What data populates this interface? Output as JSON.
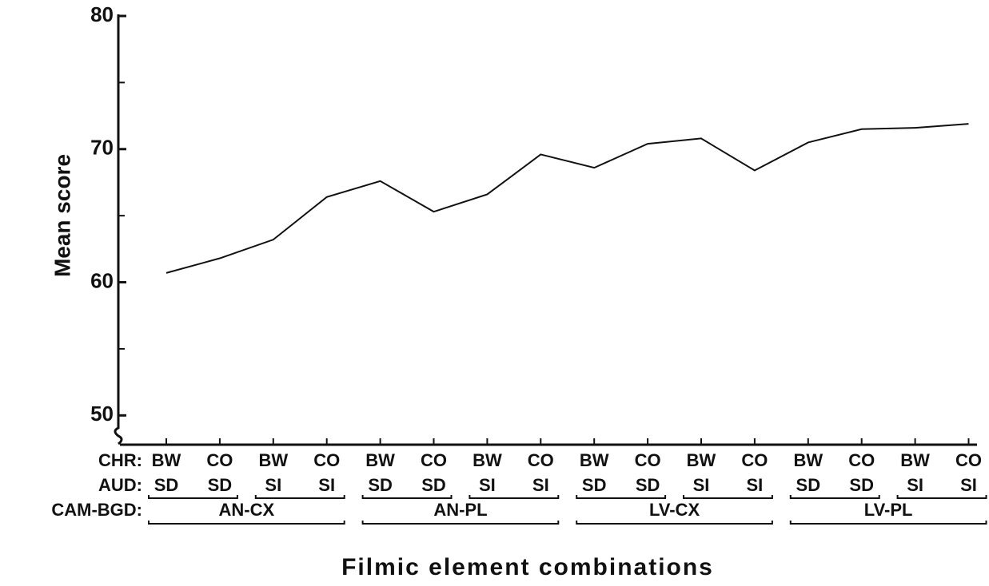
{
  "chart_data": {
    "type": "line",
    "y_label": "Mean score",
    "x_label": "Filmic element combinations",
    "categories": [
      "BW",
      "CO",
      "BW",
      "CO",
      "BW",
      "CO",
      "BW",
      "CO",
      "BW",
      "CO",
      "BW",
      "CO",
      "BW",
      "CO",
      "BW",
      "CO"
    ],
    "category_row_label": "CHR:",
    "aud_row_label": "AUD:",
    "aud_labels": [
      "SD",
      "SD",
      "SI",
      "SI",
      "SD",
      "SD",
      "SI",
      "SI",
      "SD",
      "SD",
      "SI",
      "SI",
      "SD",
      "SD",
      "SI",
      "SI"
    ],
    "group_row_label": "CAM-BGD:",
    "groups": [
      "AN-CX",
      "AN-PL",
      "LV-CX",
      "LV-PL"
    ],
    "values": [
      60.7,
      61.8,
      63.2,
      66.4,
      67.6,
      65.3,
      66.6,
      69.6,
      68.6,
      70.4,
      70.8,
      68.4,
      70.5,
      71.5,
      71.6,
      71.9
    ],
    "color": "#111111",
    "ylim": [
      47.8,
      80
    ],
    "yticks": [
      50,
      60,
      70,
      80
    ],
    "yticks_minor": [
      55,
      65,
      75
    ]
  }
}
